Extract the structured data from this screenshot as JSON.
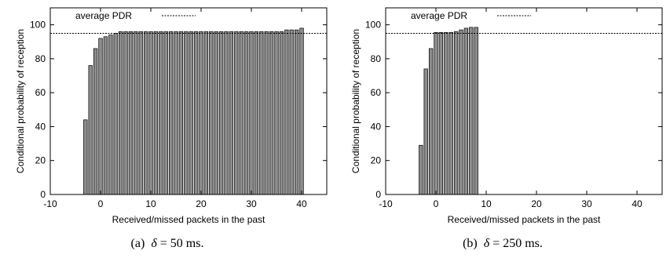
{
  "chart_data": [
    {
      "type": "bar",
      "title": "",
      "xlabel": "Received/missed packets in the past",
      "ylabel": "Conditional probability of reception",
      "xlim": [
        -10,
        45
      ],
      "ylim": [
        0,
        110
      ],
      "xticks": [
        "-10",
        "0",
        "10",
        "20",
        "30",
        "40"
      ],
      "yticks": [
        "0",
        "20",
        "40",
        "60",
        "80",
        "100"
      ],
      "grid": false,
      "legend_position": "top-left",
      "reference_line": {
        "label": "average PDR",
        "value": 95,
        "style": "dashed"
      },
      "x": [
        -3,
        -2,
        -1,
        0,
        1,
        2,
        3,
        4,
        5,
        6,
        7,
        8,
        9,
        10,
        11,
        12,
        13,
        14,
        15,
        16,
        17,
        18,
        19,
        20,
        21,
        22,
        23,
        24,
        25,
        26,
        27,
        28,
        29,
        30,
        31,
        32,
        33,
        34,
        35,
        36,
        37,
        38,
        39,
        40
      ],
      "values": [
        44,
        76,
        86,
        92,
        93,
        94,
        95,
        96,
        96,
        96,
        96,
        96,
        96,
        96,
        96,
        96,
        96,
        96,
        96,
        96,
        96,
        96,
        96,
        96,
        96,
        96,
        96,
        96,
        96,
        96,
        96,
        96,
        96,
        96,
        96,
        96,
        96,
        96,
        96,
        96,
        97,
        97,
        97,
        98
      ],
      "caption_label": "(a)",
      "caption_symbol": "δ",
      "caption_rest": " = 50 ms."
    },
    {
      "type": "bar",
      "title": "",
      "xlabel": "Received/missed packets in the past",
      "ylabel": "Conditional probability of reception",
      "xlim": [
        -10,
        45
      ],
      "ylim": [
        0,
        110
      ],
      "xticks": [
        "-10",
        "0",
        "10",
        "20",
        "30",
        "40"
      ],
      "yticks": [
        "0",
        "20",
        "40",
        "60",
        "80",
        "100"
      ],
      "grid": false,
      "legend_position": "top-left",
      "reference_line": {
        "label": "average PDR",
        "value": 95,
        "style": "dashed"
      },
      "x": [
        -3,
        -2,
        -1,
        0,
        1,
        2,
        3,
        4,
        5,
        6,
        7,
        8
      ],
      "values": [
        29,
        74,
        86,
        95.5,
        95.5,
        95.5,
        95.5,
        96,
        97,
        98,
        98.5,
        98.5
      ],
      "caption_label": "(b)",
      "caption_symbol": "δ",
      "caption_rest": " = 250 ms."
    }
  ]
}
